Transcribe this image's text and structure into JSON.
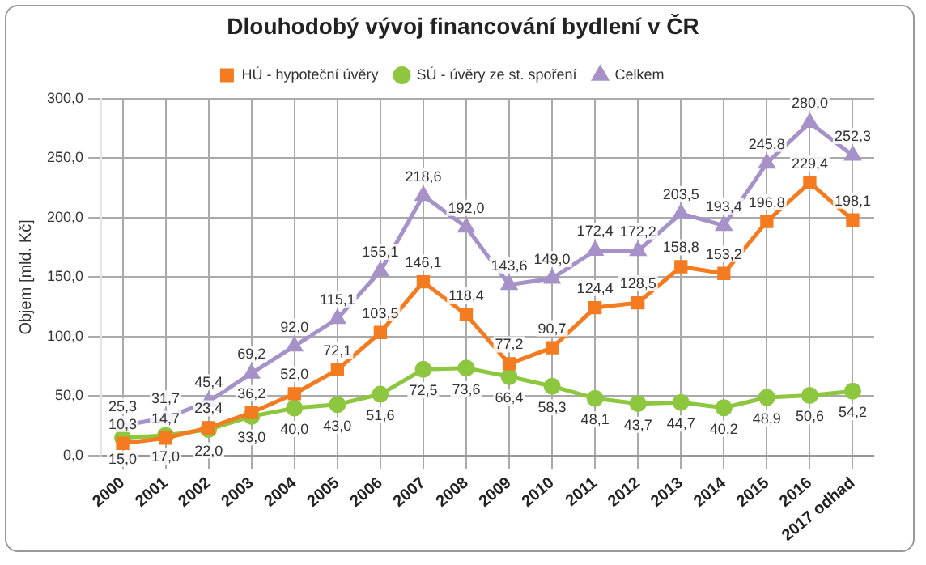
{
  "chart_data": {
    "type": "line",
    "title": "Dlouhodobý vývoj financování bydlení v ČR",
    "ylabel": "Objem [mld. Kč]",
    "categories": [
      "2000",
      "2001",
      "2002",
      "2003",
      "2004",
      "2005",
      "2006",
      "2007",
      "2008",
      "2009",
      "2010",
      "2011",
      "2012",
      "2013",
      "2014",
      "2015",
      "2016",
      "2017 odhad"
    ],
    "series": [
      {
        "name": "HÚ - hypoteční úvěry",
        "color": "#f47b20",
        "marker": "square",
        "values": [
          10.3,
          14.7,
          23.4,
          36.2,
          52.0,
          72.1,
          103.5,
          146.1,
          118.4,
          77.2,
          90.7,
          124.4,
          128.5,
          158.8,
          153.2,
          196.8,
          229.4,
          198.1
        ],
        "value_labels": [
          "10,3",
          "14,7",
          "23,4",
          "36,2",
          "52,0",
          "72,1",
          "103,5",
          "146,1",
          "118,4",
          "77,2",
          "90,7",
          "124,4",
          "128,5",
          "158,8",
          "153,2",
          "196,8",
          "229,4",
          "198,1"
        ]
      },
      {
        "name": "SÚ - úvěry ze st. spoření",
        "color": "#8dc63f",
        "marker": "circle",
        "values": [
          15.0,
          17.0,
          22.0,
          33.0,
          40.0,
          43.0,
          51.6,
          72.5,
          73.6,
          66.4,
          58.3,
          48.1,
          43.7,
          44.7,
          40.2,
          48.9,
          50.6,
          54.2
        ],
        "value_labels": [
          "15,0",
          "17,0",
          "22,0",
          "33,0",
          "40,0",
          "43,0",
          "51,6",
          "72,5",
          "73,6",
          "66,4",
          "58,3",
          "48,1",
          "43,7",
          "44,7",
          "40,2",
          "48,9",
          "50,6",
          "54,2"
        ]
      },
      {
        "name": "Celkem",
        "color": "#a692c8",
        "marker": "triangle",
        "values": [
          25.3,
          31.7,
          45.4,
          69.2,
          92.0,
          115.1,
          155.1,
          218.6,
          192.0,
          143.6,
          149.0,
          172.4,
          172.2,
          203.5,
          193.4,
          245.8,
          280.0,
          252.3
        ],
        "value_labels": [
          "25,3",
          "31,7",
          "45,4",
          "69,2",
          "92,0",
          "115,1",
          "155,1",
          "218,6",
          "192,0",
          "143,6",
          "149,0",
          "172,4",
          "172,2",
          "203,5",
          "193,4",
          "245,8",
          "280,0",
          "252,3"
        ]
      }
    ],
    "ylim": [
      0,
      300
    ],
    "yticks": [
      {
        "value": 0,
        "label": "0,0"
      },
      {
        "value": 50,
        "label": "50,0"
      },
      {
        "value": 100,
        "label": "100,0"
      },
      {
        "value": 150,
        "label": "150,0"
      },
      {
        "value": 200,
        "label": "200,0"
      },
      {
        "value": 250,
        "label": "250,0"
      },
      {
        "value": 300,
        "label": "300,0"
      }
    ],
    "grid": true,
    "legend": "top"
  }
}
